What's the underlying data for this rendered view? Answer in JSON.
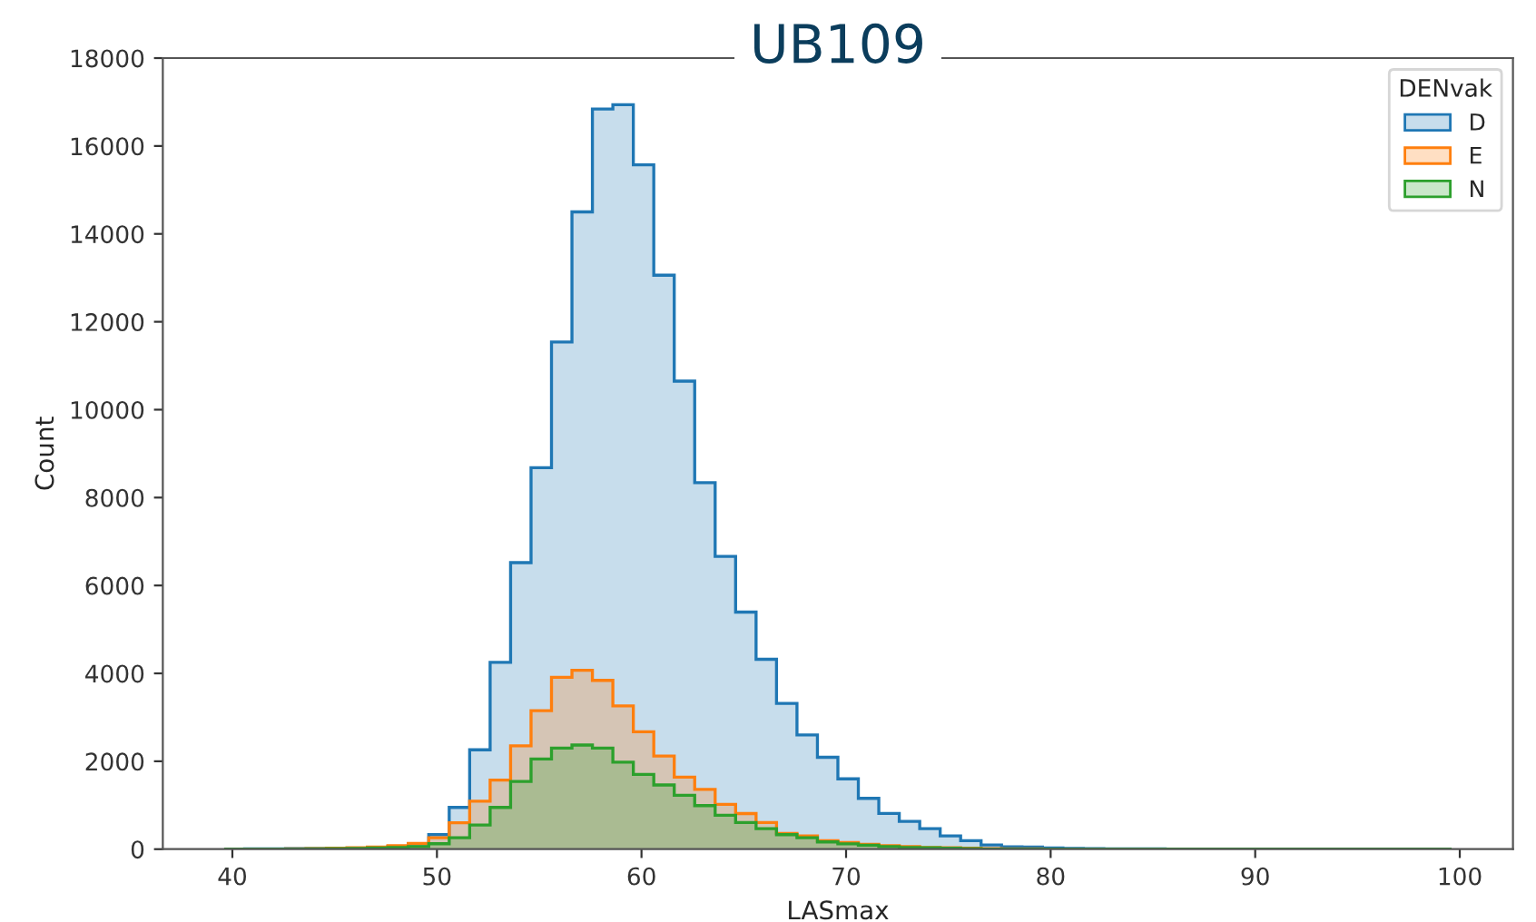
{
  "chart_data": {
    "type": "histogram",
    "title": "UB109",
    "xlabel": "LASmax",
    "ylabel": "Count",
    "legend_title": "DENvak",
    "legend": "top right",
    "grid": false,
    "bins": [
      39.6,
      40.6,
      41.6,
      42.6,
      43.6,
      44.6,
      45.6,
      46.6,
      47.6,
      48.6,
      49.6,
      50.6,
      51.6,
      52.6,
      53.6,
      54.6,
      55.6,
      56.6,
      57.6,
      58.6,
      59.6,
      60.6,
      61.6,
      62.6,
      63.6,
      64.6,
      65.6,
      66.6,
      67.6,
      68.6,
      69.6,
      70.6,
      71.6,
      72.6,
      73.6,
      74.6,
      75.6,
      76.6,
      77.6,
      78.6,
      79.6,
      80.6,
      81.6,
      82.6,
      83.6,
      84.6,
      85.6,
      86.6,
      87.6,
      88.6,
      89.6,
      90.6,
      91.6,
      92.6,
      93.6,
      94.6,
      95.6,
      96.6,
      97.6,
      98.6,
      99.6
    ],
    "series": [
      {
        "name": "D",
        "color": "#1f77b4",
        "values": [
          0,
          5,
          5,
          10,
          10,
          15,
          20,
          30,
          60,
          124,
          330,
          950,
          2260,
          4250,
          6520,
          8680,
          11540,
          14500,
          16840,
          16940,
          15570,
          13060,
          10650,
          8340,
          6660,
          5395,
          4320,
          3316,
          2600,
          2090,
          1600,
          1156,
          812,
          633,
          468,
          303,
          193,
          96,
          55,
          50,
          25,
          15,
          10,
          5,
          5,
          5,
          0,
          0,
          0,
          0,
          0,
          0,
          0,
          0,
          0,
          0,
          0,
          0,
          0,
          0
        ]
      },
      {
        "name": "E",
        "color": "#ff7f0e",
        "values": [
          0,
          0,
          0,
          5,
          10,
          20,
          30,
          50,
          80,
          130,
          260,
          600,
          1090,
          1570,
          2350,
          3150,
          3910,
          4070,
          3840,
          3260,
          2670,
          2120,
          1640,
          1360,
          1020,
          810,
          605,
          358,
          303,
          193,
          150,
          110,
          80,
          60,
          40,
          30,
          20,
          10,
          5,
          5,
          0,
          0,
          0,
          0,
          0,
          0,
          0,
          0,
          0,
          0,
          0,
          0,
          0,
          0,
          0,
          0,
          0,
          0,
          0,
          0
        ]
      },
      {
        "name": "N",
        "color": "#2ca02c",
        "values": [
          0,
          0,
          0,
          0,
          5,
          10,
          15,
          25,
          40,
          60,
          124,
          260,
          550,
          950,
          1540,
          2050,
          2300,
          2370,
          2300,
          1980,
          1700,
          1460,
          1225,
          990,
          770,
          605,
          468,
          330,
          260,
          165,
          120,
          90,
          60,
          40,
          30,
          20,
          10,
          0,
          0,
          0,
          0,
          0,
          0,
          0,
          0,
          0,
          0,
          0,
          0,
          0,
          0,
          0,
          0,
          0,
          0,
          0,
          0,
          0,
          0,
          0
        ]
      }
    ],
    "xlim": [
      36.6,
      102.6
    ],
    "xticks": [
      40,
      50,
      60,
      70,
      80,
      90,
      100
    ],
    "ylim": [
      0,
      18000
    ],
    "yticks": [
      0,
      2000,
      4000,
      6000,
      8000,
      10000,
      12000,
      14000,
      16000,
      18000
    ]
  }
}
